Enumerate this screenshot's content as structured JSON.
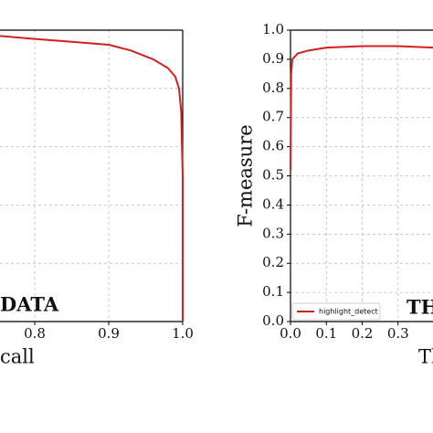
{
  "chart_data": [
    {
      "type": "line",
      "xlabel": "call",
      "annotation": "DATA",
      "x": [
        0.753,
        0.8,
        0.85,
        0.9,
        0.93,
        0.96,
        0.98,
        0.99,
        0.995,
        0.998,
        0.999,
        1.0,
        1.0
      ],
      "series": [
        {
          "color": "#d42020",
          "values": [
            0.98,
            0.97,
            0.96,
            0.95,
            0.93,
            0.9,
            0.87,
            0.84,
            0.8,
            0.72,
            0.6,
            0.5,
            0.0
          ]
        }
      ],
      "xlim": [
        0.753,
        1.0
      ],
      "ylim": [
        0,
        1
      ],
      "xticks": [
        0.8,
        0.9,
        {
          "value": 1,
          "label": "1.0"
        }
      ],
      "yticks": [
        0.2,
        0.4,
        0.6,
        0.8
      ],
      "grid": true
    },
    {
      "type": "line",
      "ylabel": "F-measure",
      "xlabel": "Th",
      "annotation": "TH",
      "x": [
        0,
        0.002,
        0.005,
        0.02,
        0.05,
        0.1,
        0.2,
        0.3,
        0.4
      ],
      "series": [
        {
          "name": "highlight_detect",
          "color": "#d42020",
          "values": [
            0.52,
            0.85,
            0.9,
            0.92,
            0.93,
            0.94,
            0.945,
            0.945,
            0.94
          ]
        }
      ],
      "xlim": [
        0,
        0.4
      ],
      "ylim": [
        0,
        1
      ],
      "xticks": [
        {
          "value": 0,
          "label": "0.0"
        },
        0.1,
        0.2,
        0.3
      ],
      "yticks": [
        {
          "value": 0,
          "label": "0.0"
        },
        0.1,
        0.2,
        0.3,
        0.4,
        0.5,
        0.6,
        0.7,
        0.8,
        0.9,
        {
          "value": 1,
          "label": "1.0"
        }
      ],
      "grid": true,
      "legend": "lower left"
    }
  ]
}
